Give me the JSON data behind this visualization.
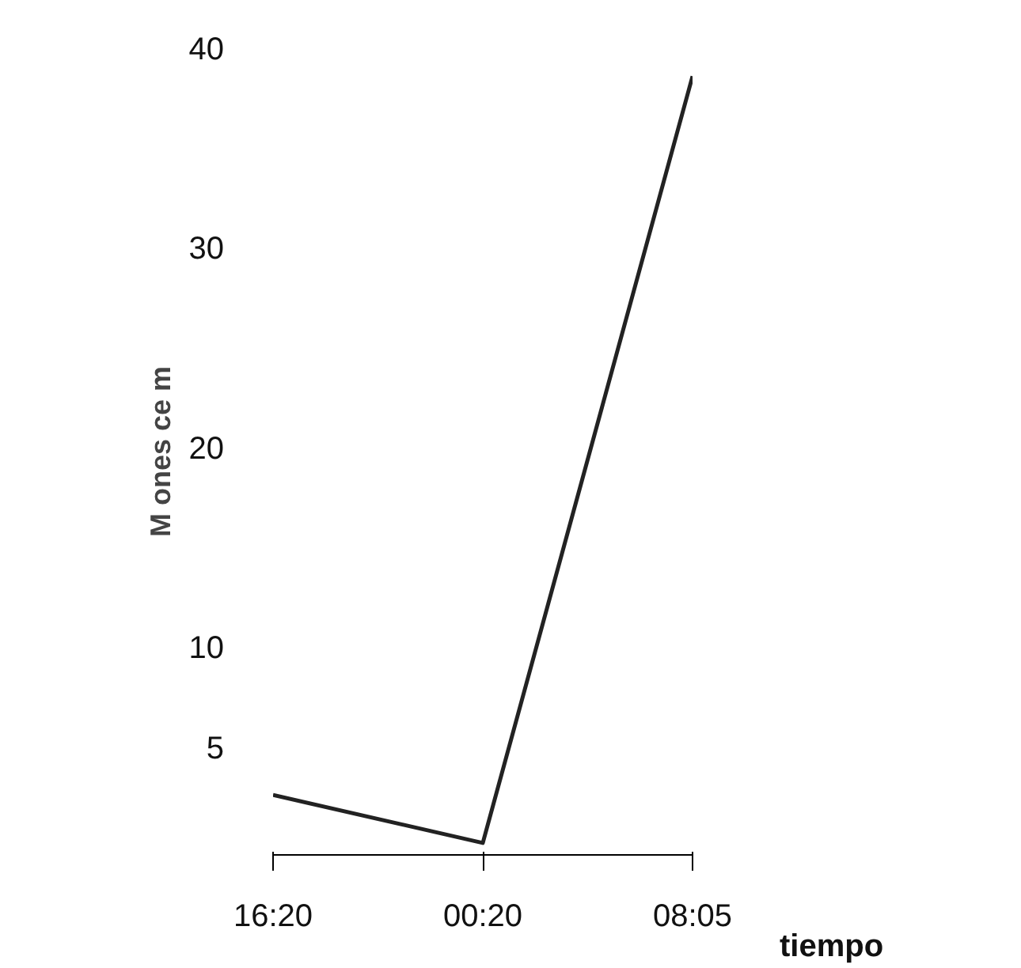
{
  "chart_data": {
    "type": "line",
    "categories": [
      "16:20",
      "00:20",
      "08:05"
    ],
    "series": [
      {
        "color": "#222222",
        "values": [
          2.6,
          0.2,
          38.6
        ]
      }
    ],
    "ylim": [
      -0.4,
      40
    ],
    "yticks": [
      5,
      10,
      20,
      30,
      40
    ],
    "xlabel": "tiempo",
    "ylabel": "M ones ce m",
    "grid": false,
    "marker": "none",
    "line_style": "solid"
  }
}
